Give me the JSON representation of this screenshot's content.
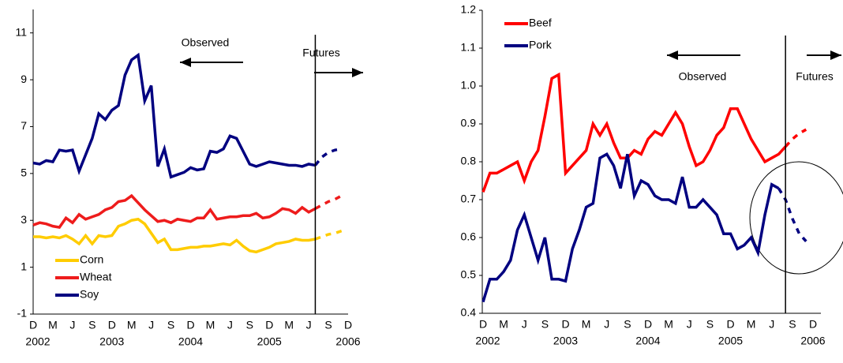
{
  "chart_data": [
    {
      "type": "line",
      "categories": [
        "D",
        null,
        null,
        "M",
        null,
        null,
        "J",
        null,
        null,
        "S",
        null,
        null,
        "D",
        null,
        null,
        "M",
        null,
        null,
        "J",
        null,
        null,
        "S",
        null,
        null,
        "D",
        null,
        null,
        "M",
        null,
        null,
        "J",
        null,
        null,
        "S",
        null,
        null,
        "D",
        null,
        null,
        "M",
        null,
        null,
        "J",
        null,
        null,
        "S",
        null,
        null,
        "D"
      ],
      "year_labels": [
        "2002",
        "2003",
        "2004",
        "2005",
        "2006"
      ],
      "ylim": [
        -1,
        12
      ],
      "yticks": [
        -1,
        1,
        3,
        5,
        7,
        9,
        11
      ],
      "legend": "lower left",
      "annotations": [
        "Observed",
        "Futures"
      ],
      "series": [
        {
          "name": "Corn",
          "color": "#ffcc00",
          "values": [
            2.3,
            2.3,
            2.25,
            2.3,
            2.25,
            2.35,
            2.2,
            2.0,
            2.35,
            2.0,
            2.35,
            2.3,
            2.35,
            2.75,
            2.85,
            3.0,
            3.05,
            2.85,
            2.45,
            2.05,
            2.2,
            1.75,
            1.75,
            1.8,
            1.85,
            1.85,
            1.9,
            1.9,
            1.95,
            2.0,
            1.95,
            2.15,
            1.9,
            1.7,
            1.65,
            1.75,
            1.85,
            2.0,
            2.05,
            2.1,
            2.2,
            2.15,
            2.15,
            2.2,
            null,
            null,
            null,
            null,
            null
          ],
          "futures": [
            null,
            null,
            null,
            null,
            null,
            null,
            null,
            null,
            null,
            null,
            null,
            null,
            null,
            null,
            null,
            null,
            null,
            null,
            null,
            null,
            null,
            null,
            null,
            null,
            null,
            null,
            null,
            null,
            null,
            null,
            null,
            null,
            null,
            null,
            null,
            null,
            null,
            null,
            null,
            null,
            null,
            null,
            null,
            2.2,
            2.3,
            2.4,
            2.45,
            2.55,
            null
          ]
        },
        {
          "name": "Wheat",
          "color": "#ee1c1c",
          "values": [
            2.8,
            2.9,
            2.85,
            2.75,
            2.7,
            3.1,
            2.9,
            3.25,
            3.05,
            3.15,
            3.25,
            3.45,
            3.55,
            3.8,
            3.85,
            4.05,
            3.75,
            3.45,
            3.2,
            2.95,
            3.0,
            2.9,
            3.05,
            3.0,
            2.95,
            3.1,
            3.1,
            3.45,
            3.05,
            3.1,
            3.15,
            3.15,
            3.2,
            3.2,
            3.3,
            3.1,
            3.15,
            3.3,
            3.5,
            3.45,
            3.3,
            3.55,
            3.35,
            3.5,
            null,
            null,
            null,
            null,
            null
          ],
          "futures": [
            null,
            null,
            null,
            null,
            null,
            null,
            null,
            null,
            null,
            null,
            null,
            null,
            null,
            null,
            null,
            null,
            null,
            null,
            null,
            null,
            null,
            null,
            null,
            null,
            null,
            null,
            null,
            null,
            null,
            null,
            null,
            null,
            null,
            null,
            null,
            null,
            null,
            null,
            null,
            null,
            null,
            null,
            null,
            3.5,
            3.65,
            3.8,
            3.9,
            4.05,
            null
          ]
        },
        {
          "name": "Soy",
          "color": "#000080",
          "values": [
            5.45,
            5.4,
            5.55,
            5.5,
            6.0,
            5.95,
            6.0,
            5.1,
            5.8,
            6.5,
            7.55,
            7.3,
            7.7,
            7.9,
            9.2,
            9.85,
            10.05,
            8.1,
            8.75,
            5.3,
            6.05,
            4.85,
            4.95,
            5.05,
            5.25,
            5.15,
            5.2,
            5.95,
            5.9,
            6.05,
            6.6,
            6.5,
            5.95,
            5.4,
            5.3,
            5.4,
            5.5,
            5.45,
            5.4,
            5.35,
            5.35,
            5.3,
            5.4,
            5.35,
            null,
            null,
            null,
            null,
            null
          ],
          "futures": [
            null,
            null,
            null,
            null,
            null,
            null,
            null,
            null,
            null,
            null,
            null,
            null,
            null,
            null,
            null,
            null,
            null,
            null,
            null,
            null,
            null,
            null,
            null,
            null,
            null,
            null,
            null,
            null,
            null,
            null,
            null,
            null,
            null,
            null,
            null,
            null,
            null,
            null,
            null,
            null,
            null,
            null,
            null,
            5.35,
            5.7,
            5.9,
            6.0,
            6.05,
            null
          ]
        }
      ]
    },
    {
      "type": "line",
      "categories": [
        "D",
        null,
        null,
        "M",
        null,
        null,
        "J",
        null,
        null,
        "S",
        null,
        null,
        "D",
        null,
        null,
        "M",
        null,
        null,
        "J",
        null,
        null,
        "S",
        null,
        null,
        "D",
        null,
        null,
        "M",
        null,
        null,
        "J",
        null,
        null,
        "S",
        null,
        null,
        "D",
        null,
        null,
        "M",
        null,
        null,
        "J",
        null,
        null,
        "S",
        null,
        null,
        "D"
      ],
      "year_labels": [
        "2002",
        "2003",
        "2004",
        "2005",
        "2006"
      ],
      "ylim": [
        0.4,
        1.2
      ],
      "yticks": [
        0.4,
        0.5,
        0.6,
        0.7,
        0.8,
        0.9,
        {
          "value": 1,
          "label": "1.0"
        },
        1.1,
        1.2
      ],
      "legend": "upper left",
      "annotations": [
        "Observed",
        "Futures"
      ],
      "series": [
        {
          "name": "Beef",
          "color": "#ff0000",
          "values": [
            0.72,
            0.77,
            0.77,
            0.78,
            0.79,
            0.8,
            0.75,
            0.8,
            0.83,
            0.92,
            1.02,
            1.03,
            0.77,
            0.79,
            0.81,
            0.83,
            0.9,
            0.87,
            0.9,
            0.85,
            0.81,
            0.81,
            0.83,
            0.82,
            0.86,
            0.88,
            0.87,
            0.9,
            0.93,
            0.9,
            0.84,
            0.79,
            0.8,
            0.83,
            0.87,
            0.89,
            0.94,
            0.94,
            0.9,
            0.86,
            0.83,
            0.8,
            0.81,
            0.82,
            0.84,
            null,
            null,
            null,
            null
          ],
          "futures": [
            null,
            null,
            null,
            null,
            null,
            null,
            null,
            null,
            null,
            null,
            null,
            null,
            null,
            null,
            null,
            null,
            null,
            null,
            null,
            null,
            null,
            null,
            null,
            null,
            null,
            null,
            null,
            null,
            null,
            null,
            null,
            null,
            null,
            null,
            null,
            null,
            null,
            null,
            null,
            null,
            null,
            null,
            null,
            null,
            0.84,
            0.86,
            0.875,
            0.885,
            null
          ]
        },
        {
          "name": "Pork",
          "color": "#000080",
          "values": [
            0.43,
            0.49,
            0.49,
            0.51,
            0.54,
            0.62,
            0.66,
            0.6,
            0.54,
            0.6,
            0.49,
            0.49,
            0.485,
            0.57,
            0.62,
            0.68,
            0.69,
            0.81,
            0.82,
            0.79,
            0.73,
            0.82,
            0.71,
            0.75,
            0.74,
            0.71,
            0.7,
            0.7,
            0.69,
            0.76,
            0.68,
            0.68,
            0.7,
            0.68,
            0.66,
            0.61,
            0.61,
            0.57,
            0.58,
            0.6,
            0.56,
            0.66,
            0.74,
            0.73,
            null,
            null,
            null,
            null,
            null
          ],
          "futures": [
            null,
            null,
            null,
            null,
            null,
            null,
            null,
            null,
            null,
            null,
            null,
            null,
            null,
            null,
            null,
            null,
            null,
            null,
            null,
            null,
            null,
            null,
            null,
            null,
            null,
            null,
            null,
            null,
            null,
            null,
            null,
            null,
            null,
            null,
            null,
            null,
            null,
            null,
            null,
            null,
            null,
            null,
            null,
            0.73,
            0.7,
            0.65,
            0.61,
            0.59,
            null
          ]
        }
      ]
    }
  ]
}
